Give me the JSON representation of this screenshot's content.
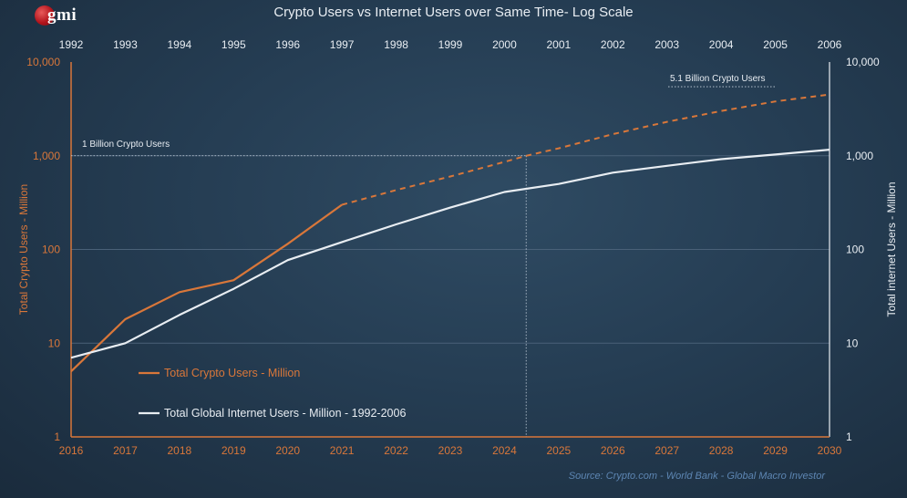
{
  "logo": {
    "text": "gmi"
  },
  "title": "Crypto Users vs Internet Users over Same Time- Log Scale",
  "source": "Source:   Crypto.com - World Bank - Global Macro Investor",
  "colors": {
    "crypto": "#d9773a",
    "internet": "#e8edf2",
    "grid": "#4a6178",
    "right_axis": "#e8edf2"
  },
  "chart_data": {
    "type": "line",
    "title": "Crypto Users vs Internet Users over Same Time- Log Scale",
    "y_scale": "log",
    "ylim": [
      1,
      10000
    ],
    "y_ticks": [
      "1",
      "10",
      "100",
      "1,000",
      "10,000"
    ],
    "y_tick_values": [
      1,
      10,
      100,
      1000,
      10000
    ],
    "ylabel_left": "Total Crypto Users - Million",
    "ylabel_right": "Total internet Users - Million",
    "x_bottom": [
      "2016",
      "2017",
      "2018",
      "2019",
      "2020",
      "2021",
      "2022",
      "2023",
      "2024",
      "2025",
      "2026",
      "2027",
      "2028",
      "2029",
      "2030"
    ],
    "x_top": [
      "1992",
      "1993",
      "1994",
      "1995",
      "1996",
      "1997",
      "1998",
      "1999",
      "2000",
      "2001",
      "2002",
      "2003",
      "2004",
      "2005",
      "2006"
    ],
    "series": [
      {
        "name": "Total Crypto Users - Million",
        "axis": "bottom",
        "solid": {
          "x": [
            2016,
            2017,
            2018,
            2019,
            2020,
            2021
          ],
          "y": [
            5,
            18,
            35,
            47,
            115,
            300
          ]
        },
        "projected": {
          "x": [
            2021,
            2022,
            2023,
            2024,
            2024.4,
            2025,
            2026,
            2027,
            2028,
            2029,
            2030
          ],
          "y": [
            300,
            430,
            600,
            860,
            1000,
            1200,
            1700,
            2300,
            3000,
            3800,
            4500
          ]
        }
      },
      {
        "name": "Total Global Internet Users - Million - 1992-2006",
        "axis": "top",
        "x": [
          1992,
          1993,
          1994,
          1995,
          1996,
          1997,
          1998,
          1999,
          2000,
          2001,
          2002,
          2003,
          2004,
          2005,
          2006
        ],
        "y": [
          7,
          10,
          20,
          38,
          77,
          120,
          185,
          280,
          410,
          500,
          660,
          780,
          920,
          1030,
          1160
        ]
      }
    ],
    "annotations": [
      {
        "text": "1 Billion Crypto Users",
        "y": 1000
      },
      {
        "text": "5.1 Billion Crypto Users",
        "y": 5100
      }
    ],
    "vline_x": 2024.4,
    "legend": "bottom-left"
  }
}
